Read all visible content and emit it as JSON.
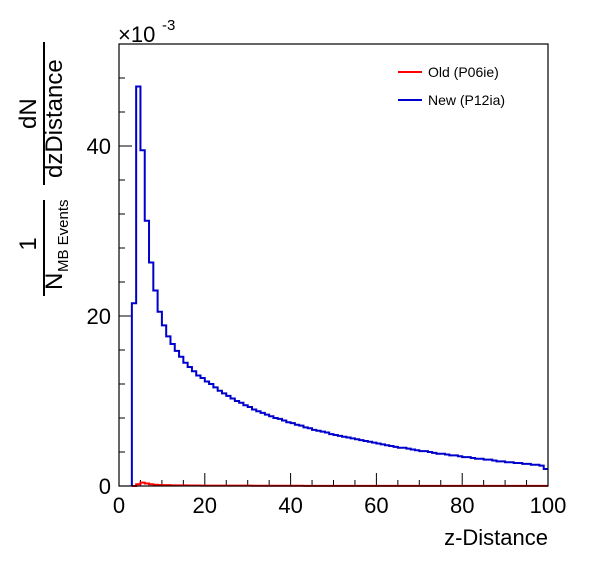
{
  "chart_data": {
    "type": "line",
    "style": "step-histogram",
    "xlabel": "z-Distance",
    "ylabel": {
      "numerator": "1",
      "denominator_main": "N",
      "denominator_sub": "MB Events",
      "fraction_numerator": "dN",
      "fraction_denominator": "dzDistance"
    },
    "y_multiplier": {
      "base": "×10",
      "exponent": "-3"
    },
    "xlim": [
      0,
      100
    ],
    "ylim": [
      0,
      52
    ],
    "x_ticks": [
      "0",
      "20",
      "40",
      "60",
      "80",
      "100"
    ],
    "x_tick_values": [
      0,
      20,
      40,
      60,
      80,
      100
    ],
    "y_ticks": [
      "0",
      "20",
      "40"
    ],
    "y_tick_values": [
      0,
      20,
      40
    ],
    "grid": false,
    "legend_position": "top-right",
    "bin_width": 1,
    "series": [
      {
        "name": "Old (P06ie)",
        "color": "#ff0000",
        "bins_start": 3,
        "values": [
          0,
          0.2,
          0.4,
          0.3,
          0.2,
          0.15,
          0.12,
          0.1,
          0.1,
          0.08,
          0.08,
          0.07,
          0.07,
          0.06,
          0.06,
          0.06,
          0.05,
          0.05,
          0.05,
          0.05,
          0.05,
          0.04,
          0.04,
          0.04,
          0.04,
          0.04,
          0.04,
          0.04,
          0.03,
          0.03,
          0.03,
          0.03,
          0.03,
          0.03,
          0.03,
          0.03,
          0.03,
          0.03,
          0.03,
          0.03,
          0.02,
          0.02,
          0.02,
          0.02,
          0.02,
          0.02,
          0.02,
          0.02,
          0.02,
          0.02,
          0.02,
          0.02,
          0.02,
          0.02,
          0.02,
          0.02,
          0.02,
          0.02,
          0.02,
          0.02,
          0.02,
          0.02,
          0.02,
          0.02,
          0.02,
          0.02,
          0.02,
          0.02,
          0.02,
          0.02,
          0.02,
          0.02,
          0.02,
          0.02,
          0.02,
          0.02,
          0.02,
          0.02,
          0.02,
          0.02,
          0.02,
          0.02,
          0.02,
          0.02,
          0.02,
          0.02,
          0.02,
          0.02,
          0.02,
          0.02,
          0.02,
          0.02,
          0.02,
          0.02,
          0.02,
          0.02,
          0.02
        ]
      },
      {
        "name": "New (P12ia)",
        "color": "#0000cc",
        "bins_start": 3,
        "values": [
          21.5,
          47.0,
          39.5,
          31.2,
          26.3,
          23.0,
          20.5,
          18.9,
          17.6,
          16.7,
          15.9,
          15.2,
          14.5,
          14.0,
          13.5,
          13.0,
          12.7,
          12.3,
          12.0,
          11.6,
          11.2,
          10.9,
          10.6,
          10.3,
          10.0,
          9.8,
          9.5,
          9.3,
          9.0,
          8.8,
          8.6,
          8.4,
          8.2,
          8.0,
          7.9,
          7.7,
          7.5,
          7.4,
          7.2,
          7.1,
          6.9,
          6.8,
          6.6,
          6.5,
          6.4,
          6.3,
          6.1,
          6.0,
          5.9,
          5.8,
          5.7,
          5.6,
          5.5,
          5.4,
          5.3,
          5.2,
          5.1,
          5.0,
          4.9,
          4.8,
          4.7,
          4.6,
          4.5,
          4.5,
          4.4,
          4.3,
          4.2,
          4.1,
          4.1,
          4.0,
          3.9,
          3.8,
          3.8,
          3.7,
          3.6,
          3.6,
          3.5,
          3.4,
          3.4,
          3.3,
          3.2,
          3.2,
          3.1,
          3.1,
          3.0,
          2.9,
          2.9,
          2.8,
          2.8,
          2.7,
          2.7,
          2.6,
          2.6,
          2.5,
          2.5,
          2.4,
          2.0
        ]
      }
    ]
  }
}
